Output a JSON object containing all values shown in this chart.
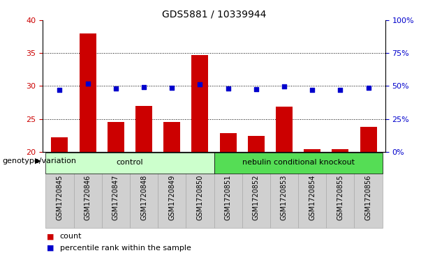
{
  "title": "GDS5881 / 10339944",
  "samples": [
    "GSM1720845",
    "GSM1720846",
    "GSM1720847",
    "GSM1720848",
    "GSM1720849",
    "GSM1720850",
    "GSM1720851",
    "GSM1720852",
    "GSM1720853",
    "GSM1720854",
    "GSM1720855",
    "GSM1720856"
  ],
  "counts": [
    22.2,
    38.0,
    24.5,
    27.0,
    24.5,
    34.7,
    22.8,
    22.4,
    26.9,
    20.4,
    20.4,
    23.8
  ],
  "percentiles": [
    47,
    52,
    48,
    49,
    48.5,
    51.5,
    48,
    47.5,
    49.5,
    47,
    47,
    48.5
  ],
  "bar_color": "#cc0000",
  "dot_color": "#0000cc",
  "ylim_left": [
    20,
    40
  ],
  "ylim_right": [
    0,
    100
  ],
  "yticks_left": [
    20,
    25,
    30,
    35,
    40
  ],
  "yticks_right": [
    0,
    25,
    50,
    75,
    100
  ],
  "ytick_labels_right": [
    "0%",
    "25%",
    "50%",
    "75%",
    "100%"
  ],
  "grid_values": [
    25,
    30,
    35
  ],
  "groups": [
    {
      "label": "control",
      "start": 0,
      "end": 6,
      "color": "#ccffcc"
    },
    {
      "label": "nebulin conditional knockout",
      "start": 6,
      "end": 12,
      "color": "#55dd55"
    }
  ],
  "group_row_label": "genotype/variation",
  "legend_items": [
    {
      "label": "count",
      "color": "#cc0000"
    },
    {
      "label": "percentile rank within the sample",
      "color": "#0000cc"
    }
  ],
  "bar_width": 0.6,
  "dot_size": 25,
  "sample_box_color": "#d0d0d0",
  "sample_box_edge": "#aaaaaa"
}
